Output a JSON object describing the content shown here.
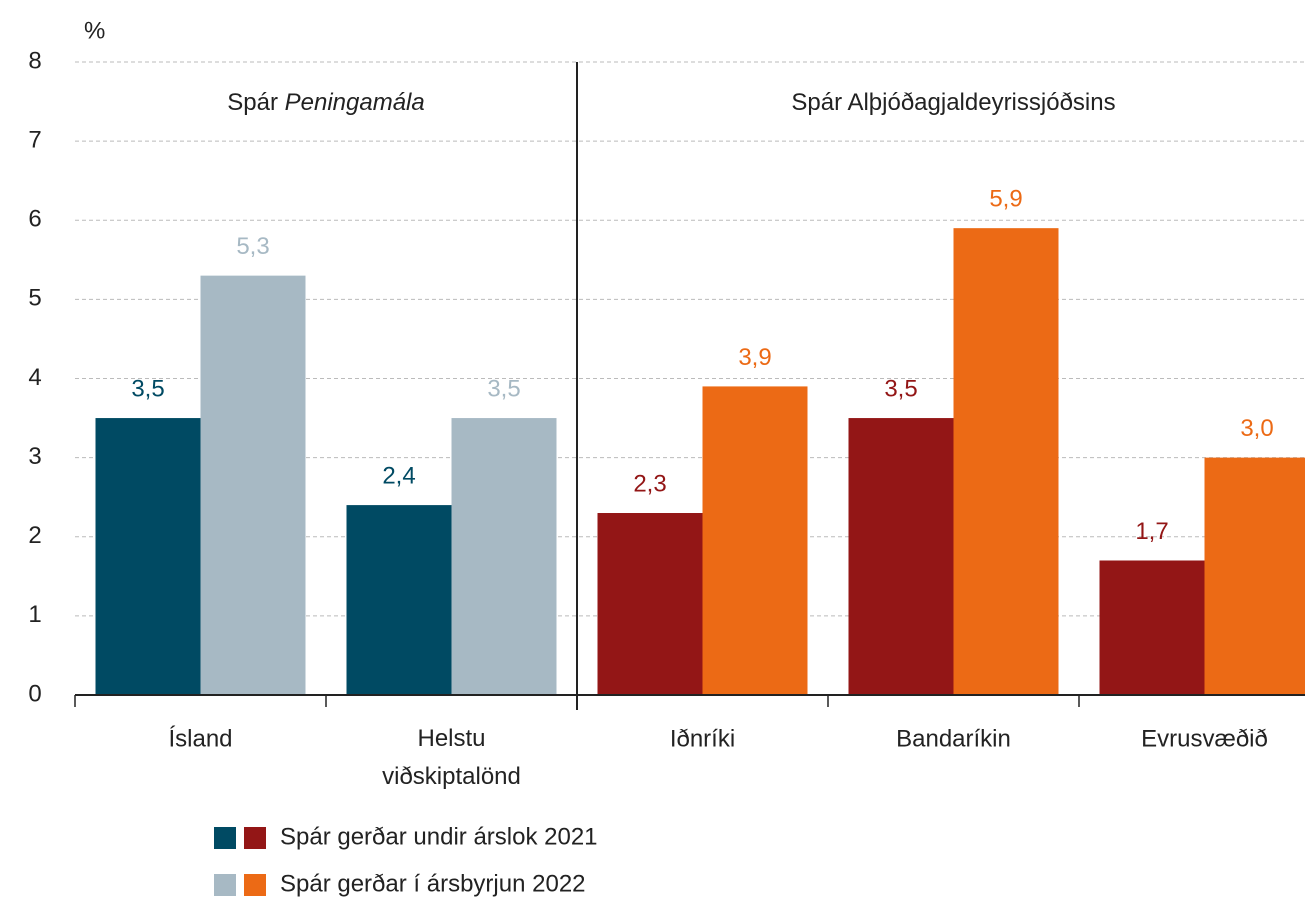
{
  "chart_data": {
    "type": "bar",
    "y_label": "%",
    "sections": [
      {
        "text": "Spár",
        "italic": "Peningamála"
      },
      {
        "text": "Spár Alþjóðagjaldeyrissjóðsins"
      }
    ],
    "categories": [
      "Ísland",
      "Helstu viðskiptalönd",
      "Iðnríki",
      "Bandaríkin",
      "Evrusvæðið"
    ],
    "series": [
      {
        "name": "Spár gerðar undir árslok 2021",
        "colors": [
          "#004a63",
          "#004a63",
          "#931616",
          "#931616",
          "#931616"
        ],
        "values": [
          3.5,
          2.4,
          2.3,
          3.5,
          1.7
        ],
        "value_labels": [
          "3,5",
          "2,4",
          "2,3",
          "3,5",
          "1,7"
        ]
      },
      {
        "name": "Spár gerðar í ársbyrjun 2022",
        "colors": [
          "#a7b9c4",
          "#a7b9c4",
          "#ec6a15",
          "#ec6a15",
          "#ec6a15"
        ],
        "values": [
          5.3,
          3.5,
          3.9,
          5.9,
          3.0
        ],
        "value_labels": [
          "5,3",
          "3,5",
          "3,9",
          "5,9",
          "3,0"
        ]
      }
    ],
    "ylim": [
      0,
      8
    ],
    "yticks": [
      0,
      1,
      2,
      3,
      4,
      5,
      6,
      7,
      8
    ],
    "grid": true
  }
}
